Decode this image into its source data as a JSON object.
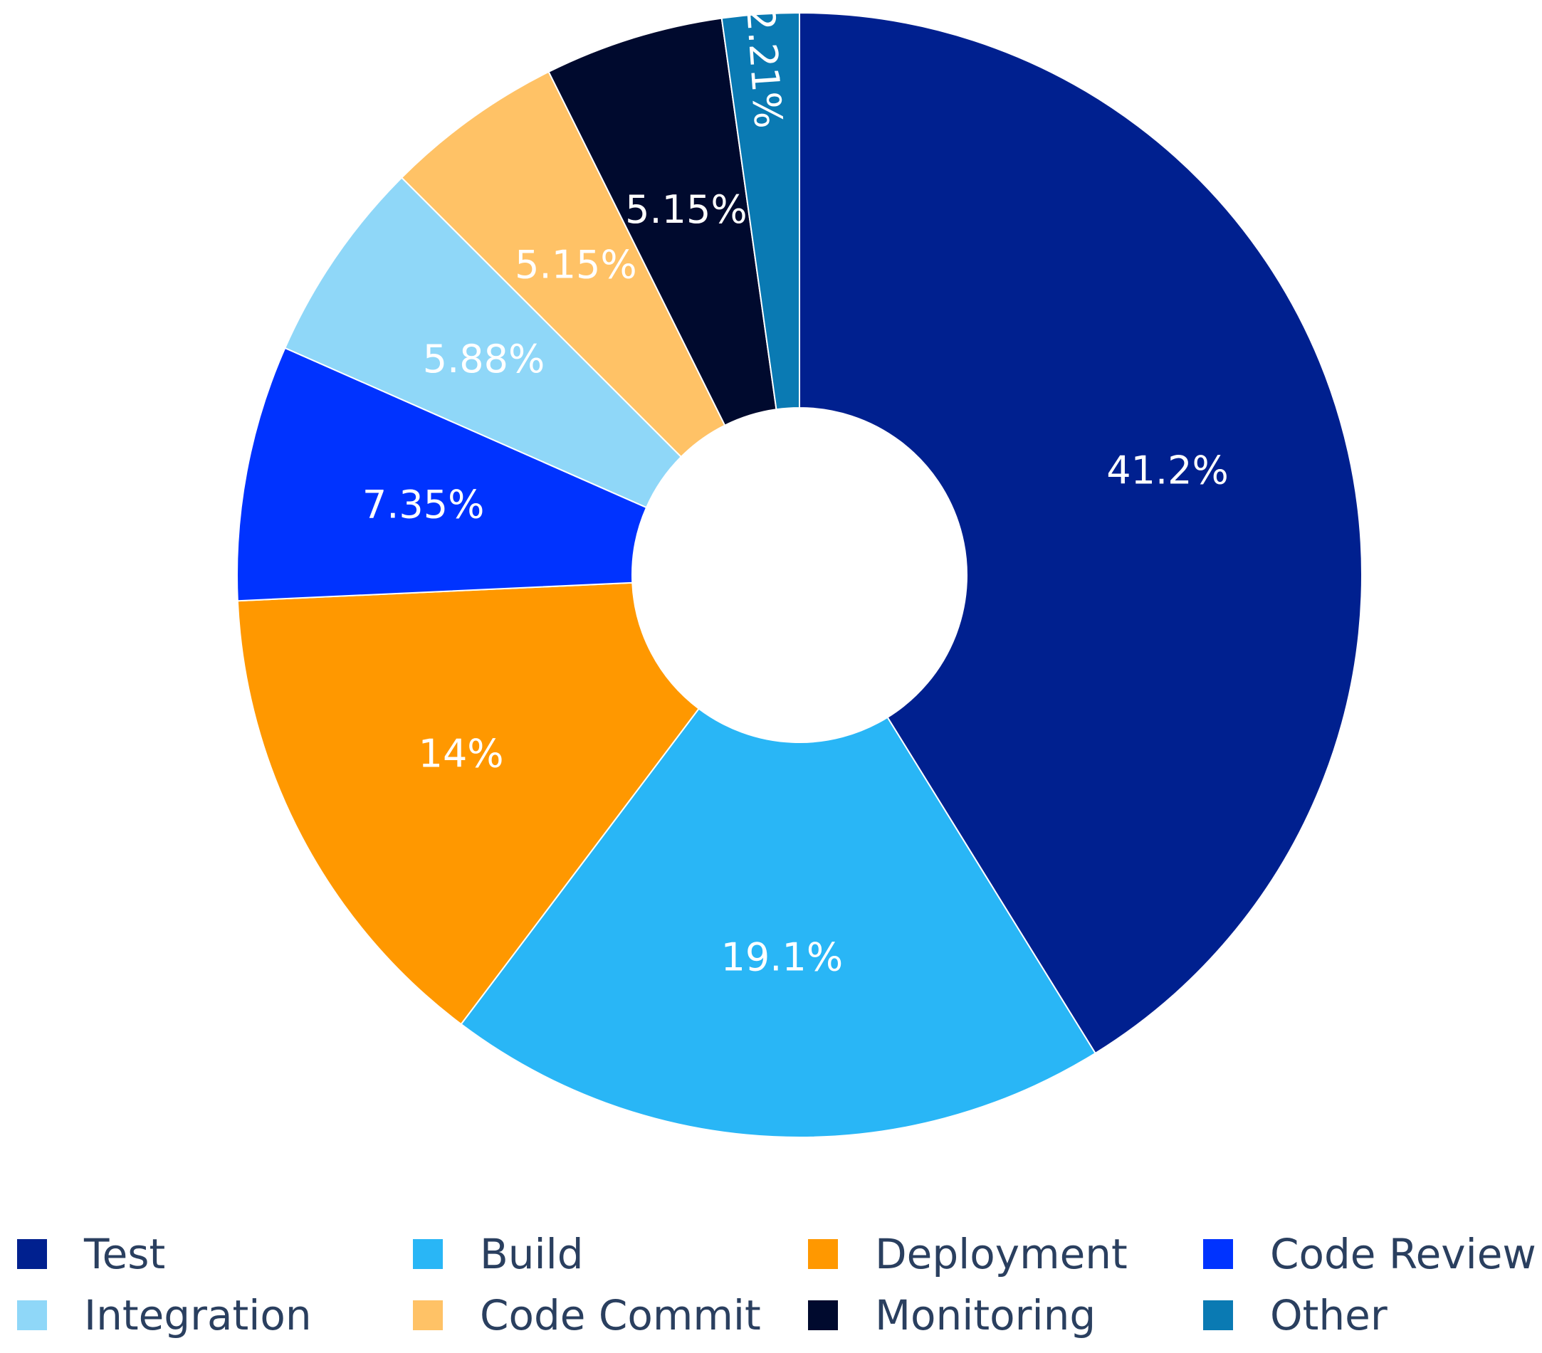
{
  "chart_data": {
    "type": "pie",
    "hole": true,
    "categories": [
      "Test",
      "Build",
      "Deployment",
      "Code Review",
      "Integration",
      "Code Commit",
      "Monitoring",
      "Other"
    ],
    "values": [
      41.2,
      19.1,
      14,
      7.35,
      5.88,
      5.15,
      5.15,
      2.21
    ],
    "labels": [
      "41.2%",
      "19.1%",
      "14%",
      "7.35%",
      "5.88%",
      "5.15%",
      "5.15%",
      "2.21%"
    ],
    "colors": [
      "#00208f",
      "#29b6f6",
      "#ff9800",
      "#0033ff",
      "#8fd7f8",
      "#ffc266",
      "#000a2e",
      "#0a7ab3"
    ],
    "label_colors": [
      "#ffffff",
      "#ffffff",
      "#ffffff",
      "#ffffff",
      "#ffffff",
      "#ffffff",
      "#ffffff",
      "#ffffff"
    ],
    "legend_position": "bottom",
    "legend_entries": [
      "Test",
      "Build",
      "Deployment",
      "Code Review",
      "Integration",
      "Code Commit",
      "Monitoring",
      "Other"
    ]
  }
}
